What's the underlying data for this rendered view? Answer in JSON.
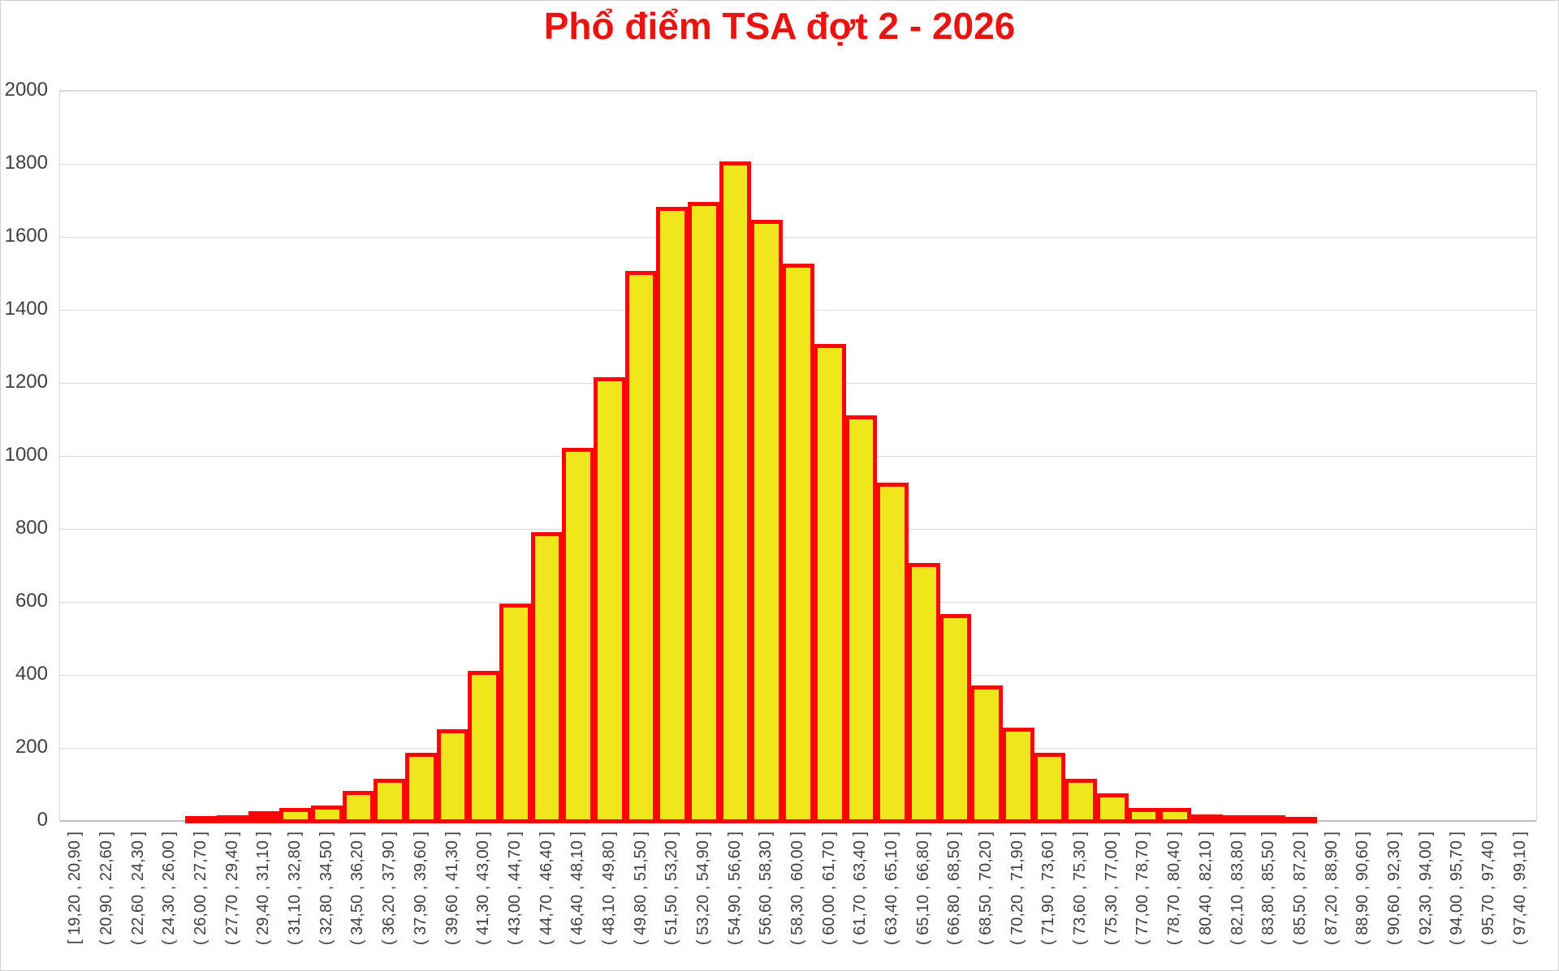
{
  "title": "Phổ điểm TSA đợt 2 - 2026",
  "colors": {
    "title_text": "#e9140f",
    "bar_fill": "#f0e61c",
    "bar_border": "#fc0408",
    "gridline": "#d9d9d9",
    "axis_line": "#bfbfbf",
    "tick_text": "#404040",
    "background": "#ffffff"
  },
  "chart_data": {
    "type": "bar",
    "title": "Phổ điểm TSA đợt 2 - 2026",
    "xlabel": "",
    "ylabel": "",
    "legend": "none",
    "grid": "horizontal",
    "x_tick_rotation": 90,
    "ylim": [
      0,
      2000
    ],
    "yticks": [
      0,
      200,
      400,
      600,
      800,
      1000,
      1200,
      1400,
      1600,
      1800,
      2000
    ],
    "categories": [
      "[ 19,20 ,  20,90 ]",
      "( 20,90 ,  22,60 ]",
      "( 22,60 ,  24,30 ]",
      "( 24,30 ,  26,00 ]",
      "( 26,00 ,  27,70 ]",
      "( 27,70 ,  29,40 ]",
      "( 29,40 ,  31,10 ]",
      "( 31,10 ,  32,80 ]",
      "( 32,80 ,  34,50 ]",
      "( 34,50 ,  36,20 ]",
      "( 36,20 ,  37,90 ]",
      "( 37,90 ,  39,60 ]",
      "( 39,60 ,  41,30 ]",
      "( 41,30 ,  43,00 ]",
      "( 43,00 ,  44,70 ]",
      "( 44,70 ,  46,40 ]",
      "( 46,40 ,  48,10 ]",
      "( 48,10 ,  49,80 ]",
      "( 49,80 ,  51,50 ]",
      "( 51,50 ,  53,20 ]",
      "( 53,20 ,  54,90 ]",
      "( 54,90 ,  56,60 ]",
      "( 56,60 ,  58,30 ]",
      "( 58,30 ,  60,00 ]",
      "( 60,00 ,  61,70 ]",
      "( 61,70 ,  63,40 ]",
      "( 63,40 ,  65,10 ]",
      "( 65,10 ,  66,80 ]",
      "( 66,80 ,  68,50 ]",
      "( 68,50 ,  70,20 ]",
      "( 70,20 ,  71,90 ]",
      "( 71,90 ,  73,60 ]",
      "( 73,60 ,  75,30 ]",
      "( 75,30 ,  77,00 ]",
      "( 77,00 ,  78,70 ]",
      "( 78,70 ,  80,40 ]",
      "( 80,40 ,  82,10 ]",
      "( 82,10 ,  83,80 ]",
      "( 83,80 ,  85,50 ]",
      "( 85,50 ,  87,20 ]",
      "( 87,20 ,  88,90 ]",
      "( 88,90 ,  90,60 ]",
      "( 90,60 ,  92,30 ]",
      "( 92,30 ,  94,00 ]",
      "( 94,00 ,  95,70 ]",
      "( 95,70 ,  97,40 ]",
      "( 97,40 ,  99,10 ]"
    ],
    "values": [
      0,
      0,
      0,
      0,
      6,
      10,
      20,
      28,
      35,
      75,
      110,
      180,
      245,
      405,
      590,
      785,
      1015,
      1210,
      1500,
      1675,
      1690,
      1800,
      1640,
      1520,
      1300,
      1105,
      920,
      700,
      560,
      365,
      250,
      180,
      110,
      70,
      30,
      30,
      12,
      10,
      8,
      5,
      0,
      0,
      0,
      0,
      0,
      0,
      0
    ]
  }
}
